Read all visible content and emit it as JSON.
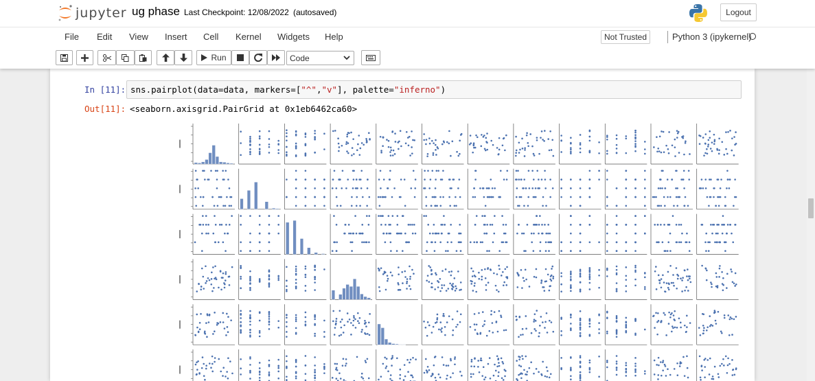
{
  "app": {
    "logo_text": "jupyter",
    "notebook_name": "ug phase",
    "checkpoint": "Last Checkpoint: 12/08/2022",
    "autosave": "(autosaved)",
    "logout_label": "Logout"
  },
  "menu": {
    "items": [
      "File",
      "Edit",
      "View",
      "Insert",
      "Cell",
      "Kernel",
      "Widgets",
      "Help"
    ],
    "trust": "Not Trusted",
    "kernel": "Python 3 (ipykernel)"
  },
  "toolbar": {
    "buttons": [
      "save-icon",
      "plus-icon",
      "cut-icon",
      "copy-icon",
      "paste-icon",
      "arrow-up-icon",
      "arrow-down-icon",
      "run-icon",
      "stop-icon",
      "restart-icon",
      "fast-forward-icon",
      "keyboard-icon"
    ],
    "run_label": "Run",
    "cell_type": "Code"
  },
  "cell": {
    "in_prompt": "In [11]:",
    "code_prefix": "sns.pairplot(data=data, markers=[",
    "code_s1": "\"^\"",
    "code_comma": ",",
    "code_s2": "\"v\"",
    "code_mid": "], palette=",
    "code_s3": "\"inferno\"",
    "code_suffix": ")",
    "out_prompt": "Out[11]:",
    "out_text": "<seaborn.axisgrid.PairGrid at 0x1eb6462ca60>"
  },
  "colors": {
    "accent": "#4c72b0",
    "in_prompt": "#303f9f",
    "out_prompt": "#d84315",
    "string": "#ba2121"
  },
  "chart_data": {
    "type": "scatter",
    "title": "",
    "grid_columns": 13,
    "grid_rows_visible": 6,
    "diagonal": "histogram",
    "histograms": [
      [
        0.04,
        0.03,
        0.06,
        0.12,
        0.3,
        0.5,
        0.2,
        0.06,
        0.05,
        0.03,
        0.02
      ],
      [
        0.28,
        0.0,
        0.5,
        0.0,
        0.72,
        0.0,
        0.0,
        0.2,
        0.0,
        0.03,
        0.02
      ],
      [
        0.85,
        0.0,
        0.9,
        0.0,
        0.42,
        0.0,
        0.18,
        0.0,
        0.05,
        0.0,
        0.02
      ],
      [
        0.25,
        0.0,
        0.14,
        0.3,
        0.4,
        0.35,
        0.55,
        0.35,
        0.15,
        0.08,
        0.05
      ],
      [
        0.55,
        0.45,
        0.15,
        0.06,
        0.03,
        0.02,
        0.01,
        0.01,
        0.0,
        0.0,
        0.0
      ]
    ]
  }
}
